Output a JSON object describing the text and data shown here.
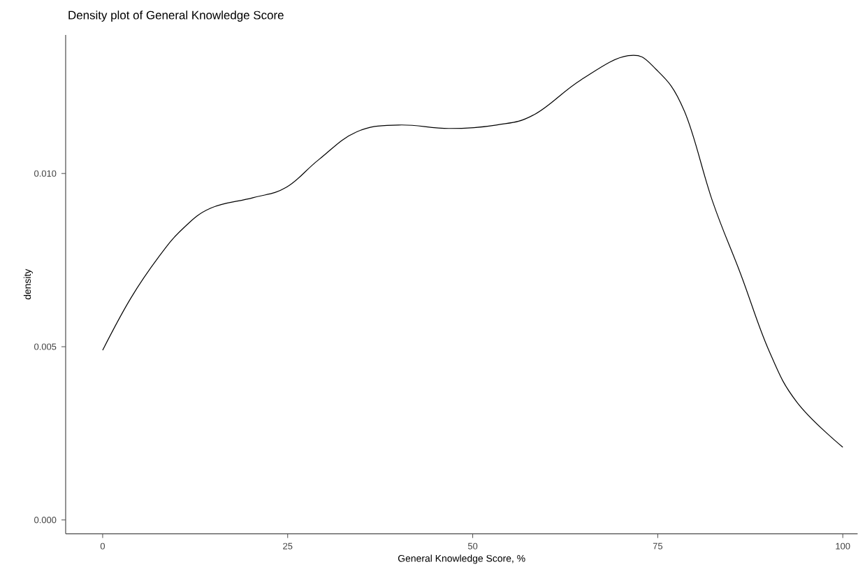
{
  "chart_data": {
    "type": "line",
    "title": "Density plot of General Knowledge Score",
    "xlabel": "General Knowledge Score, %",
    "ylabel": "density",
    "x": [
      0,
      3.8,
      7.6,
      10.8,
      14.6,
      20.3,
      24.8,
      29.2,
      34.3,
      40,
      46.8,
      53.2,
      58.3,
      64.6,
      71,
      74.8,
      78.6,
      82.4,
      86.2,
      90,
      93.8,
      100
    ],
    "values": [
      0.0049,
      0.0064,
      0.0076,
      0.0084,
      0.009,
      0.0093,
      0.0096,
      0.0104,
      0.0112,
      0.0114,
      0.0113,
      0.0114,
      0.0117,
      0.0127,
      0.0134,
      0.013,
      0.0118,
      0.0092,
      0.0071,
      0.0049,
      0.0034,
      0.0021
    ],
    "color": "#000000",
    "xlim": [
      -5,
      102
    ],
    "ylim": [
      -0.0004,
      0.014
    ],
    "xticks": [
      0,
      25,
      50,
      75,
      100
    ],
    "yticks": [
      {
        "value": 0,
        "label": "0.000"
      },
      {
        "value": 0.005,
        "label": "0.005"
      },
      {
        "value": 0.01,
        "label": "0.010"
      }
    ],
    "grid": false,
    "marker": "none",
    "line_style": "solid"
  }
}
